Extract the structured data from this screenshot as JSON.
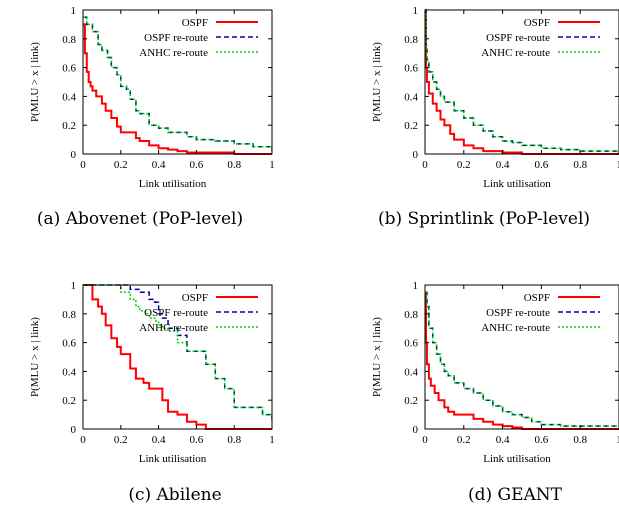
{
  "figure": {
    "legend_position": "top-right",
    "colors": {
      "ospf": "#ff0000",
      "ospf_reroute": "#0000a0",
      "anhc_reroute": "#00d000"
    }
  },
  "chart_data": [
    {
      "type": "line",
      "caption": "(a) Abovenet (PoP-level)",
      "xlabel": "Link utilisation",
      "ylabel": "P(MLU > x | link)",
      "xlim": [
        0,
        1
      ],
      "ylim": [
        0,
        1
      ],
      "xticks": [
        "0",
        "0.2",
        "0.4",
        "0.6",
        "0.8",
        "1"
      ],
      "yticks": [
        "0",
        "0.2",
        "0.4",
        "0.6",
        "0.8",
        "1"
      ],
      "legend": [
        "OSPF",
        "OSPF re-route",
        "ANHC re-route"
      ],
      "series": [
        {
          "name": "OSPF",
          "x": [
            0,
            0.01,
            0.02,
            0.03,
            0.04,
            0.05,
            0.07,
            0.1,
            0.12,
            0.15,
            0.18,
            0.2,
            0.25,
            0.28,
            0.3,
            0.35,
            0.4,
            0.45,
            0.5,
            0.55,
            0.6,
            0.8,
            1.0
          ],
          "y": [
            0.9,
            0.7,
            0.57,
            0.5,
            0.47,
            0.44,
            0.4,
            0.35,
            0.3,
            0.25,
            0.19,
            0.15,
            0.15,
            0.11,
            0.09,
            0.06,
            0.04,
            0.03,
            0.02,
            0.01,
            0.01,
            0.0,
            0.0
          ]
        },
        {
          "name": "OSPF re-route",
          "x": [
            0,
            0.02,
            0.05,
            0.08,
            0.1,
            0.13,
            0.15,
            0.18,
            0.2,
            0.23,
            0.25,
            0.28,
            0.3,
            0.35,
            0.4,
            0.45,
            0.5,
            0.55,
            0.6,
            0.7,
            0.8,
            0.9,
            1.0
          ],
          "y": [
            0.95,
            0.9,
            0.85,
            0.76,
            0.72,
            0.67,
            0.6,
            0.55,
            0.47,
            0.45,
            0.38,
            0.3,
            0.28,
            0.2,
            0.18,
            0.15,
            0.15,
            0.12,
            0.1,
            0.09,
            0.07,
            0.05,
            0.02
          ]
        },
        {
          "name": "ANHC re-route",
          "x": [
            0,
            0.02,
            0.05,
            0.08,
            0.1,
            0.13,
            0.15,
            0.18,
            0.2,
            0.23,
            0.25,
            0.28,
            0.3,
            0.35,
            0.4,
            0.45,
            0.5,
            0.55,
            0.6,
            0.7,
            0.8,
            0.9,
            1.0
          ],
          "y": [
            0.95,
            0.9,
            0.85,
            0.76,
            0.72,
            0.67,
            0.6,
            0.55,
            0.47,
            0.45,
            0.38,
            0.3,
            0.28,
            0.2,
            0.18,
            0.15,
            0.15,
            0.12,
            0.1,
            0.09,
            0.07,
            0.05,
            0.02
          ]
        }
      ]
    },
    {
      "type": "line",
      "caption": "(b) Sprintlink (PoP-level)",
      "xlabel": "Link utilisation",
      "ylabel": "P(MLU > x | link)",
      "xlim": [
        0,
        1
      ],
      "ylim": [
        0,
        1
      ],
      "xticks": [
        "0",
        "0.2",
        "0.4",
        "0.6",
        "0.8",
        "1"
      ],
      "yticks": [
        "0",
        "0.2",
        "0.4",
        "0.6",
        "0.8",
        "1"
      ],
      "legend": [
        "OSPF",
        "OSPF re-route",
        "ANHC re-route"
      ],
      "series": [
        {
          "name": "OSPF",
          "x": [
            0,
            0.005,
            0.01,
            0.02,
            0.04,
            0.06,
            0.08,
            0.1,
            0.13,
            0.15,
            0.2,
            0.25,
            0.3,
            0.4,
            0.5,
            1.0
          ],
          "y": [
            1.0,
            0.6,
            0.5,
            0.42,
            0.35,
            0.3,
            0.24,
            0.2,
            0.14,
            0.1,
            0.06,
            0.04,
            0.02,
            0.01,
            0.0,
            0.0
          ]
        },
        {
          "name": "OSPF re-route",
          "x": [
            0,
            0.005,
            0.01,
            0.02,
            0.04,
            0.06,
            0.08,
            0.1,
            0.15,
            0.2,
            0.25,
            0.3,
            0.35,
            0.4,
            0.45,
            0.5,
            0.6,
            0.7,
            0.8,
            1.0
          ],
          "y": [
            1.0,
            0.75,
            0.65,
            0.57,
            0.5,
            0.45,
            0.4,
            0.36,
            0.3,
            0.25,
            0.2,
            0.16,
            0.12,
            0.09,
            0.08,
            0.06,
            0.04,
            0.03,
            0.02,
            0.01
          ]
        },
        {
          "name": "ANHC re-route",
          "x": [
            0,
            0.005,
            0.01,
            0.02,
            0.04,
            0.06,
            0.08,
            0.1,
            0.15,
            0.2,
            0.25,
            0.3,
            0.35,
            0.4,
            0.45,
            0.5,
            0.6,
            0.7,
            0.8,
            1.0
          ],
          "y": [
            1.0,
            0.75,
            0.65,
            0.57,
            0.5,
            0.45,
            0.4,
            0.36,
            0.3,
            0.25,
            0.2,
            0.16,
            0.12,
            0.09,
            0.08,
            0.06,
            0.04,
            0.03,
            0.02,
            0.01
          ]
        }
      ]
    },
    {
      "type": "line",
      "caption": "(c) Abilene",
      "xlabel": "Link utilisation",
      "ylabel": "P(MLU > x | link)",
      "xlim": [
        0,
        1
      ],
      "ylim": [
        0,
        1
      ],
      "xticks": [
        "0",
        "0.2",
        "0.4",
        "0.6",
        "0.8",
        "1"
      ],
      "yticks": [
        "0",
        "0.2",
        "0.4",
        "0.6",
        "0.8",
        "1"
      ],
      "legend": [
        "OSPF",
        "OSPF re-route",
        "ANHC re-route"
      ],
      "series": [
        {
          "name": "OSPF",
          "x": [
            0,
            0.03,
            0.05,
            0.08,
            0.1,
            0.12,
            0.15,
            0.18,
            0.2,
            0.25,
            0.28,
            0.32,
            0.35,
            0.42,
            0.45,
            0.5,
            0.55,
            0.6,
            0.65,
            0.7,
            1.0
          ],
          "y": [
            1.0,
            1.0,
            0.9,
            0.85,
            0.8,
            0.72,
            0.63,
            0.57,
            0.52,
            0.42,
            0.35,
            0.32,
            0.28,
            0.2,
            0.12,
            0.1,
            0.05,
            0.03,
            0.0,
            0.0,
            0.0
          ]
        },
        {
          "name": "OSPF re-route",
          "x": [
            0,
            0.2,
            0.25,
            0.3,
            0.35,
            0.38,
            0.4,
            0.42,
            0.45,
            0.5,
            0.55,
            0.6,
            0.65,
            0.7,
            0.75,
            0.8,
            0.85,
            0.9,
            0.95,
            1.0
          ],
          "y": [
            1.0,
            1.0,
            0.97,
            0.95,
            0.9,
            0.88,
            0.8,
            0.77,
            0.7,
            0.65,
            0.54,
            0.54,
            0.45,
            0.35,
            0.28,
            0.15,
            0.15,
            0.15,
            0.1,
            0.06
          ]
        },
        {
          "name": "ANHC re-route",
          "x": [
            0,
            0.15,
            0.2,
            0.25,
            0.28,
            0.3,
            0.33,
            0.35,
            0.38,
            0.4,
            0.42,
            0.45,
            0.5,
            0.55,
            0.6,
            0.65,
            0.7,
            0.75,
            0.8,
            0.85,
            0.9,
            0.95,
            1.0
          ],
          "y": [
            1.0,
            1.0,
            0.95,
            0.9,
            0.85,
            0.82,
            0.8,
            0.77,
            0.75,
            0.72,
            0.7,
            0.68,
            0.6,
            0.54,
            0.54,
            0.45,
            0.35,
            0.28,
            0.15,
            0.15,
            0.15,
            0.1,
            0.06
          ]
        }
      ]
    },
    {
      "type": "line",
      "caption": "(d) GEANT",
      "xlabel": "Link utilisation",
      "ylabel": "P(MLU > x | link)",
      "xlim": [
        0,
        1
      ],
      "ylim": [
        0,
        1
      ],
      "xticks": [
        "0",
        "0.2",
        "0.4",
        "0.6",
        "0.8",
        "1"
      ],
      "yticks": [
        "0",
        "0.2",
        "0.4",
        "0.6",
        "0.8",
        "1"
      ],
      "legend": [
        "OSPF",
        "OSPF re-route",
        "ANHC re-route"
      ],
      "series": [
        {
          "name": "OSPF",
          "x": [
            0,
            0.005,
            0.01,
            0.02,
            0.03,
            0.05,
            0.07,
            0.1,
            0.12,
            0.15,
            0.2,
            0.25,
            0.3,
            0.35,
            0.4,
            0.45,
            0.5,
            0.6,
            1.0
          ],
          "y": [
            0.95,
            0.6,
            0.45,
            0.35,
            0.3,
            0.25,
            0.2,
            0.15,
            0.12,
            0.1,
            0.1,
            0.07,
            0.05,
            0.03,
            0.02,
            0.01,
            0.0,
            0.0,
            0.0
          ]
        },
        {
          "name": "OSPF re-route",
          "x": [
            0,
            0.01,
            0.02,
            0.04,
            0.06,
            0.08,
            0.1,
            0.12,
            0.15,
            0.2,
            0.25,
            0.3,
            0.35,
            0.4,
            0.45,
            0.5,
            0.55,
            0.6,
            0.7,
            0.8,
            1.0
          ],
          "y": [
            0.95,
            0.85,
            0.7,
            0.6,
            0.52,
            0.45,
            0.4,
            0.37,
            0.32,
            0.28,
            0.25,
            0.2,
            0.16,
            0.12,
            0.1,
            0.08,
            0.05,
            0.03,
            0.02,
            0.02,
            0.02
          ]
        },
        {
          "name": "ANHC re-route",
          "x": [
            0,
            0.01,
            0.02,
            0.04,
            0.06,
            0.08,
            0.1,
            0.12,
            0.15,
            0.2,
            0.25,
            0.3,
            0.35,
            0.4,
            0.45,
            0.5,
            0.55,
            0.6,
            0.7,
            0.8,
            1.0
          ],
          "y": [
            0.95,
            0.85,
            0.7,
            0.6,
            0.52,
            0.45,
            0.4,
            0.37,
            0.32,
            0.28,
            0.25,
            0.2,
            0.16,
            0.12,
            0.1,
            0.08,
            0.05,
            0.03,
            0.02,
            0.02,
            0.02
          ]
        }
      ]
    }
  ]
}
